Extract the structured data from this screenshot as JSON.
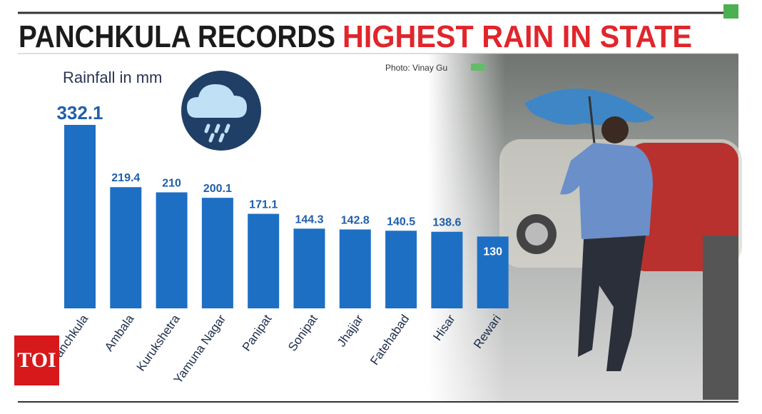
{
  "chart_data": {
    "type": "bar",
    "title": "PANCHKULA RECORDS",
    "title_highlight": "HIGHEST RAIN IN STATE",
    "subtitle": "Rainfall in mm",
    "credit": "Photo: Vinay Gu",
    "categories": [
      "Panchkula",
      "Ambala",
      "Kurukshetra",
      "Yamuna Nagar",
      "Panipat",
      "Sonipat",
      "Jhajjar",
      "Fatehabad",
      "Hisar",
      "Rewari"
    ],
    "values": [
      332.1,
      219.4,
      210,
      200.1,
      171.1,
      144.3,
      142.8,
      140.5,
      138.6,
      130
    ],
    "color": "#1d6fc4"
  },
  "logo": "TOI"
}
